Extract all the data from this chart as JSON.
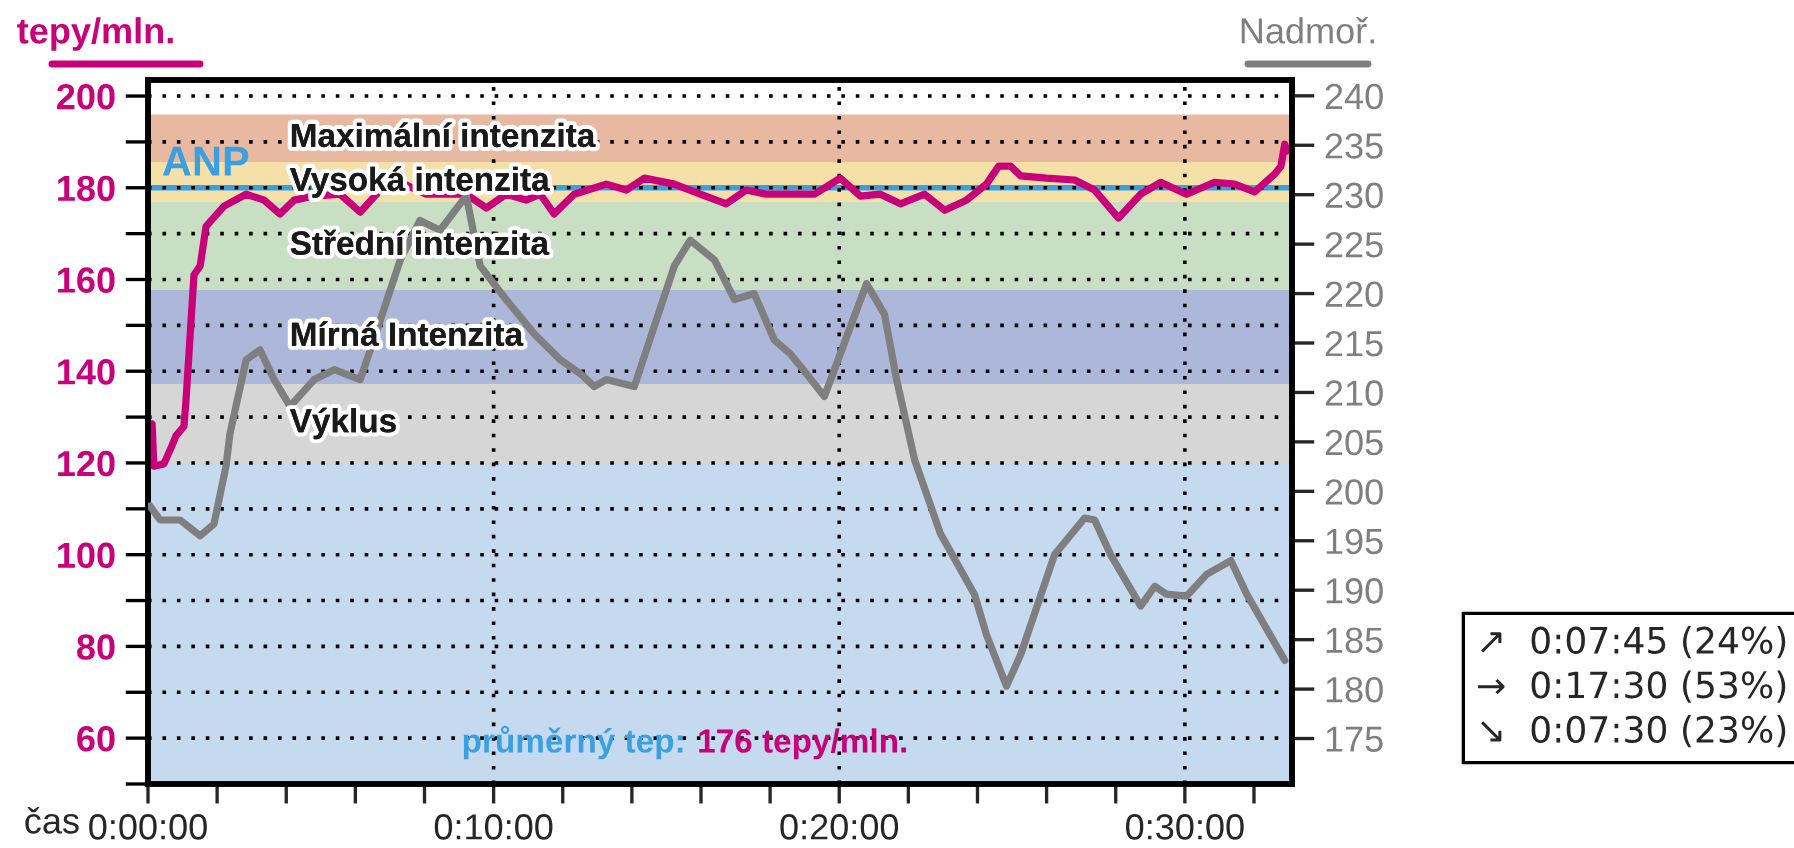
{
  "chart_data": {
    "type": "line",
    "xlabel": "čas",
    "ylabel": "tepy/mln.",
    "y2label": "Nadmoř.",
    "xlim": [
      0,
      33.1
    ],
    "xticks": [
      {
        "value": 0,
        "label": "0:00:00"
      },
      {
        "value": 2,
        "label": null
      },
      {
        "value": 4,
        "label": null
      },
      {
        "value": 6,
        "label": null
      },
      {
        "value": 8,
        "label": null
      },
      {
        "value": 10,
        "label": "0:10:00"
      },
      {
        "value": 12,
        "label": null
      },
      {
        "value": 14,
        "label": null
      },
      {
        "value": 16,
        "label": null
      },
      {
        "value": 18,
        "label": null
      },
      {
        "value": 20,
        "label": "0:20:00"
      },
      {
        "value": 22,
        "label": null
      },
      {
        "value": 24,
        "label": null
      },
      {
        "value": 26,
        "label": null
      },
      {
        "value": 28,
        "label": null
      },
      {
        "value": 30,
        "label": "0:30:00"
      },
      {
        "value": 32,
        "label": null
      }
    ],
    "ylim": [
      50,
      203.5
    ],
    "yticks": [
      {
        "value": 50,
        "label": null
      },
      60,
      {
        "value": 70,
        "label": null
      },
      80,
      {
        "value": 90,
        "label": null
      },
      100,
      {
        "value": 110,
        "label": null
      },
      120,
      {
        "value": 130,
        "label": null
      },
      140,
      {
        "value": 150,
        "label": null
      },
      160,
      {
        "value": 170,
        "label": null
      },
      180,
      {
        "value": 190,
        "label": null
      },
      200
    ],
    "y2lim": [
      170.4,
      241.6
    ],
    "y2ticks": [
      175,
      180,
      185,
      190,
      195,
      200,
      205,
      210,
      215,
      220,
      225,
      230,
      235,
      240
    ],
    "grid": true,
    "line_style": "solid",
    "marker": "none",
    "series": [
      {
        "color": "#c8007a",
        "x": [
          0.06,
          0.12,
          0.17,
          0.46,
          0.69,
          0.81,
          1.04,
          1.1,
          1.33,
          1.51,
          1.68,
          2.2,
          2.84,
          3.36,
          3.82,
          4.23,
          4.81,
          5.56,
          6.14,
          6.72,
          7.3,
          8.05,
          9.21,
          9.79,
          10.36,
          10.94,
          11.35,
          11.75,
          12.33,
          13.26,
          13.84,
          14.36,
          15.23,
          15.98,
          16.73,
          17.31,
          17.89,
          19.28,
          20.03,
          20.61,
          21.19,
          21.77,
          22.47,
          23.05,
          23.68,
          24.26,
          24.61,
          24.96,
          25.25,
          26.0,
          26.81,
          27.39,
          28.08,
          28.72,
          29.3,
          30.05,
          30.86,
          31.44,
          32.02,
          32.6,
          32.78,
          32.89,
          32.95
        ],
        "values": [
          128,
          128.5,
          119.3,
          119.8,
          123.7,
          125.9,
          128,
          133.7,
          161,
          163,
          171.6,
          176,
          178.6,
          177.3,
          174.3,
          177.3,
          178.2,
          178.6,
          174.7,
          179.5,
          181.2,
          178.6,
          178.6,
          175.6,
          178.6,
          177.3,
          178.6,
          174.3,
          178.6,
          180.8,
          179.5,
          182.1,
          180.8,
          178.6,
          176.5,
          179.5,
          178.6,
          178.6,
          182.1,
          178.2,
          178.6,
          176.5,
          178.6,
          175.1,
          177.3,
          180.8,
          184.7,
          184.7,
          182.6,
          182.1,
          181.7,
          179.5,
          173.4,
          178.6,
          181.2,
          178.6,
          181.2,
          180.8,
          179.1,
          183,
          184.7,
          189.5,
          188
        ]
      },
      {
        "color": "#7f7f7f",
        "axis": "y2",
        "x": [
          0.06,
          0.35,
          0.93,
          1.51,
          1.91,
          2.26,
          2.37,
          2.84,
          3.24,
          3.65,
          4.11,
          4.81,
          5.39,
          6.14,
          6.72,
          7.3,
          7.87,
          8.45,
          9.21,
          9.61,
          10.36,
          11.18,
          11.93,
          12.51,
          12.91,
          13.26,
          14.07,
          14.65,
          15.23,
          15.69,
          16.39,
          16.97,
          17.54,
          18.12,
          18.59,
          19.05,
          19.57,
          20.03,
          20.79,
          21.31,
          21.66,
          22.18,
          22.93,
          23.91,
          24.26,
          24.84,
          25.25,
          26.23,
          27.1,
          27.39,
          27.85,
          28.72,
          29.13,
          29.47,
          30.05,
          30.63,
          31.33,
          31.79,
          32.89
        ],
        "values": [
          198.5,
          197.1,
          197.1,
          195.5,
          196.7,
          202.6,
          205.8,
          213.3,
          214.3,
          211.3,
          208.6,
          211.3,
          212.3,
          211.3,
          217.3,
          223.4,
          227.4,
          226.4,
          229.9,
          222.8,
          219.4,
          215.9,
          213.3,
          211.9,
          210.6,
          211.3,
          210.6,
          216.7,
          222.8,
          225.4,
          223.4,
          219.4,
          220,
          215.3,
          213.9,
          211.9,
          209.6,
          213.9,
          221,
          217.9,
          211.3,
          203.2,
          195.7,
          189.6,
          185.5,
          180.3,
          183.5,
          193.6,
          197.3,
          197.1,
          193.6,
          188.4,
          190.4,
          189.6,
          189.4,
          191.6,
          193,
          189.6,
          182.9
        ]
      }
    ],
    "bands": [
      {
        "axis": "y",
        "from": 185.6,
        "to": 196,
        "label": "Maximální intenzita",
        "color": "#e8b9a0"
      },
      {
        "axis": "y",
        "from": 176.9,
        "to": 185.6,
        "label": "Vysoká intenzita",
        "color": "#f5e0a8"
      },
      {
        "axis": "y",
        "from": 157.7,
        "to": 176.9,
        "label": "Střední intenzita",
        "color": "#c8dfc4"
      },
      {
        "axis": "y",
        "from": 137.2,
        "to": 157.7,
        "label": "Mírná Intenzita",
        "color": "#adb7da"
      },
      {
        "axis": "y",
        "from": 120,
        "to": 137.2,
        "label": "Výklus",
        "color": "#d6d6d6"
      },
      {
        "axis": "y",
        "from": 50,
        "to": 120,
        "color": "#c5d9ef"
      }
    ],
    "ref_lines": [
      {
        "axis": "y",
        "value": 180,
        "label": "ANP",
        "color": "#3aa0e0"
      }
    ],
    "annotations": [
      "průměrný tep:",
      "176 tepy/mln.",
      "↗  0:07:45 (24%)",
      "→  0:17:30 (53%)",
      "↘  0:07:30 (23%)"
    ]
  }
}
